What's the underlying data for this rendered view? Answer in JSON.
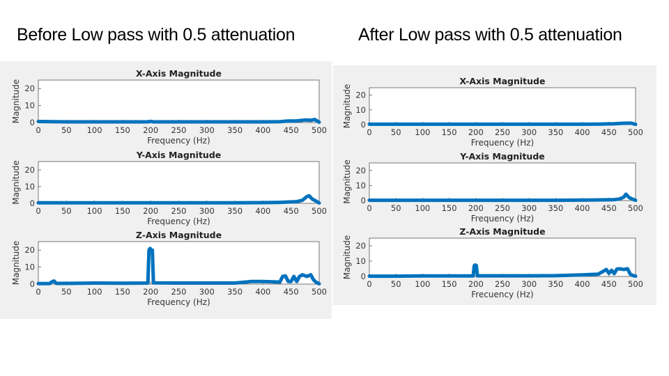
{
  "titles": {
    "left": "Before Low pass with 0.5 attenuation",
    "right": "After Low pass with 0.5 attenuation"
  },
  "colors": {
    "series": "#0072bd",
    "panel": "#f0f0f0",
    "axes": "#ffffff"
  },
  "chart_data": [
    {
      "group": "before",
      "type": "line",
      "title": "X-Axis Magnitude",
      "xlabel": "Frequency (Hz)",
      "ylabel": "Magnitude",
      "xlim": [
        0,
        500
      ],
      "ylim": [
        0,
        25
      ],
      "xticks": [
        0,
        50,
        100,
        150,
        200,
        250,
        300,
        350,
        400,
        450,
        500
      ],
      "yticks": [
        0,
        10,
        20
      ],
      "series": [
        {
          "x": [
            0,
            50,
            100,
            150,
            195,
            200,
            205,
            250,
            300,
            350,
            400,
            430,
            445,
            460,
            475,
            485,
            492,
            500
          ],
          "y": [
            0.6,
            0.4,
            0.4,
            0.4,
            0.4,
            0.7,
            0.4,
            0.4,
            0.4,
            0.4,
            0.4,
            0.5,
            0.9,
            1.0,
            1.5,
            1.3,
            1.8,
            0.2
          ]
        }
      ]
    },
    {
      "group": "before",
      "type": "line",
      "title": "Y-Axis Magnitude",
      "xlabel": "Frequency (Hz)",
      "ylabel": "Magnitude",
      "xlim": [
        0,
        500
      ],
      "ylim": [
        0,
        25
      ],
      "xticks": [
        0,
        50,
        100,
        150,
        200,
        250,
        300,
        350,
        400,
        450,
        500
      ],
      "yticks": [
        0,
        10,
        20
      ],
      "series": [
        {
          "x": [
            0,
            50,
            100,
            150,
            200,
            250,
            300,
            350,
            400,
            430,
            460,
            470,
            478,
            482,
            488,
            495,
            500
          ],
          "y": [
            0.3,
            0.3,
            0.3,
            0.3,
            0.3,
            0.3,
            0.3,
            0.3,
            0.4,
            0.6,
            1.0,
            1.8,
            4.0,
            4.5,
            2.5,
            1.2,
            0.2
          ]
        }
      ]
    },
    {
      "group": "before",
      "type": "line",
      "title": "Z-Axis Magnitude",
      "xlabel": "Frequency (Hz)",
      "ylabel": "Magnitude",
      "xlim": [
        0,
        500
      ],
      "ylim": [
        0,
        25
      ],
      "xticks": [
        0,
        50,
        100,
        150,
        200,
        250,
        300,
        350,
        400,
        450,
        500
      ],
      "yticks": [
        0,
        10,
        20
      ],
      "series": [
        {
          "x": [
            0,
            20,
            25,
            28,
            32,
            50,
            100,
            150,
            195,
            197,
            199,
            201,
            203,
            205,
            250,
            300,
            350,
            380,
            400,
            430,
            435,
            440,
            445,
            450,
            455,
            460,
            465,
            470,
            478,
            485,
            490,
            495,
            500
          ],
          "y": [
            0.3,
            0.3,
            1.5,
            1.8,
            0.4,
            0.4,
            0.6,
            0.5,
            0.6,
            20,
            21,
            20,
            20,
            0.7,
            0.6,
            0.6,
            0.6,
            1.5,
            1.5,
            1.2,
            4.5,
            4.8,
            1.5,
            1.6,
            4.5,
            1.5,
            4.5,
            5.5,
            4.5,
            5.5,
            2.5,
            1.0,
            0.2
          ]
        }
      ]
    },
    {
      "group": "after",
      "type": "line",
      "title": "X-Axis Magnitude",
      "xlabel": "Frequency (Hz)",
      "ylabel": "Magnitude",
      "xlim": [
        0,
        500
      ],
      "ylim": [
        0,
        25
      ],
      "xticks": [
        0,
        50,
        100,
        150,
        200,
        250,
        300,
        350,
        400,
        450,
        500
      ],
      "yticks": [
        0,
        10,
        20
      ],
      "series": [
        {
          "x": [
            0,
            50,
            100,
            150,
            200,
            250,
            300,
            350,
            400,
            430,
            460,
            475,
            485,
            492,
            500
          ],
          "y": [
            0.3,
            0.3,
            0.3,
            0.3,
            0.3,
            0.3,
            0.3,
            0.3,
            0.3,
            0.4,
            0.6,
            0.9,
            1.0,
            1.0,
            0.2
          ]
        }
      ]
    },
    {
      "group": "after",
      "type": "line",
      "title": "Y-Axis Magnitude",
      "xlabel": "Frequency (Hz)",
      "ylabel": "Magnitude",
      "xlim": [
        0,
        500
      ],
      "ylim": [
        0,
        25
      ],
      "xticks": [
        0,
        50,
        100,
        150,
        200,
        250,
        300,
        350,
        400,
        450,
        500
      ],
      "yticks": [
        0,
        10,
        20
      ],
      "series": [
        {
          "x": [
            0,
            50,
            100,
            150,
            200,
            250,
            300,
            350,
            400,
            430,
            460,
            470,
            478,
            482,
            488,
            495,
            500
          ],
          "y": [
            0.2,
            0.2,
            0.2,
            0.2,
            0.2,
            0.2,
            0.2,
            0.2,
            0.3,
            0.4,
            0.6,
            1.0,
            2.3,
            4.2,
            2.0,
            0.8,
            0.2
          ]
        }
      ]
    },
    {
      "group": "after",
      "type": "line",
      "title": "Z-Axis Magnitude",
      "xlabel": "Frecuency (Hz)",
      "ylabel": "Magnitude",
      "xlim": [
        0,
        500
      ],
      "ylim": [
        0,
        25
      ],
      "xticks": [
        0,
        50,
        100,
        150,
        200,
        250,
        300,
        350,
        400,
        450,
        500
      ],
      "yticks": [
        0,
        10,
        20
      ],
      "series": [
        {
          "x": [
            0,
            50,
            100,
            150,
            195,
            197,
            199,
            201,
            203,
            250,
            300,
            350,
            400,
            430,
            440,
            445,
            450,
            455,
            460,
            465,
            470,
            478,
            485,
            490,
            495,
            500
          ],
          "y": [
            0.2,
            0.2,
            0.3,
            0.3,
            0.3,
            7,
            7.5,
            7,
            0.4,
            0.4,
            0.4,
            0.5,
            1.0,
            1.5,
            3.5,
            4.5,
            2.0,
            4.0,
            1.8,
            4.8,
            5.0,
            4.5,
            5.0,
            1.5,
            0.6,
            0.2
          ]
        }
      ]
    }
  ]
}
